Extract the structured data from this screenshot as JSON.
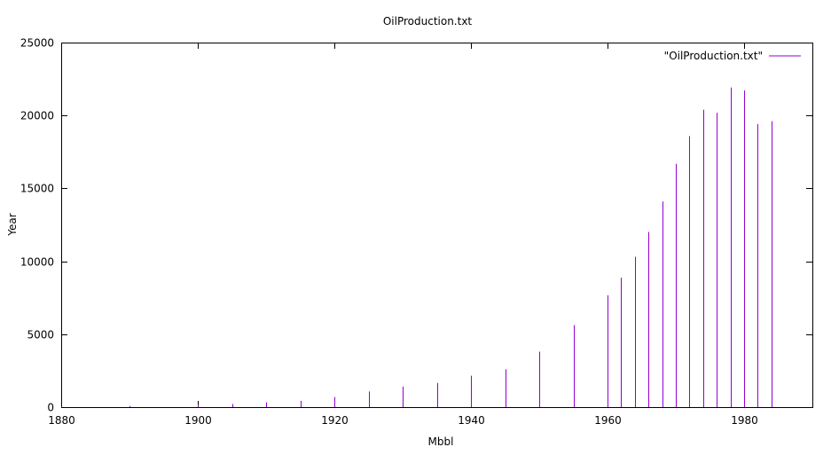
{
  "chart_data": {
    "type": "impulse",
    "title": "OilProduction.txt",
    "xlabel": "Mbbl",
    "ylabel": "Year",
    "xlim": [
      1880,
      1990
    ],
    "ylim": [
      0,
      25000
    ],
    "x_ticks": [
      1880,
      1900,
      1920,
      1940,
      1960,
      1980
    ],
    "y_ticks": [
      0,
      5000,
      10000,
      15000,
      20000,
      25000
    ],
    "grid": false,
    "legend_position": "top-right",
    "series": [
      {
        "name": "\"OilProduction.txt\"",
        "color": "#9400d3",
        "points": [
          {
            "x": 1880,
            "y": 30
          },
          {
            "x": 1890,
            "y": 77
          },
          {
            "x": 1900,
            "y": 149
          },
          {
            "x": 1905,
            "y": 215
          },
          {
            "x": 1910,
            "y": 328
          },
          {
            "x": 1915,
            "y": 432
          },
          {
            "x": 1920,
            "y": 689
          },
          {
            "x": 1925,
            "y": 1069
          },
          {
            "x": 1930,
            "y": 1412
          },
          {
            "x": 1935,
            "y": 1655
          },
          {
            "x": 1940,
            "y": 2150
          },
          {
            "x": 1945,
            "y": 2595
          },
          {
            "x": 1950,
            "y": 3803
          },
          {
            "x": 1955,
            "y": 5626
          },
          {
            "x": 1960,
            "y": 7674
          },
          {
            "x": 1962,
            "y": 8882
          },
          {
            "x": 1964,
            "y": 10310
          },
          {
            "x": 1966,
            "y": 12016
          },
          {
            "x": 1968,
            "y": 14104
          },
          {
            "x": 1970,
            "y": 16690
          },
          {
            "x": 1972,
            "y": 18584
          },
          {
            "x": 1974,
            "y": 20389
          },
          {
            "x": 1976,
            "y": 20188
          },
          {
            "x": 1978,
            "y": 21922
          },
          {
            "x": 1980,
            "y": 21722
          },
          {
            "x": 1982,
            "y": 19411
          },
          {
            "x": 1984,
            "y": 19610
          }
        ]
      }
    ]
  }
}
